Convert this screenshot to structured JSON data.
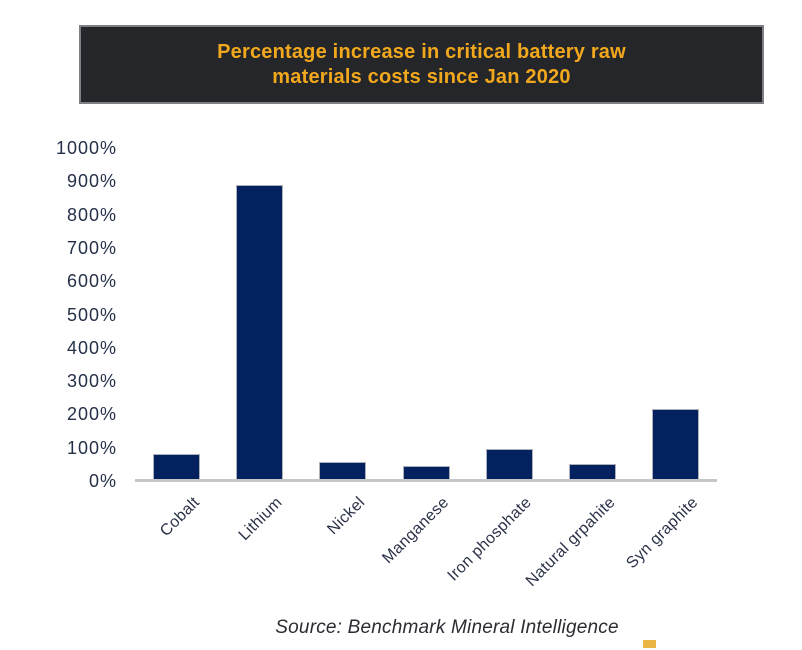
{
  "header": {
    "title_lines": [
      "Percentage increase in critical battery raw",
      "materials costs since Jan 2020"
    ]
  },
  "chart_data": {
    "type": "bar",
    "title": "Percentage increase in critical battery raw materials costs since Jan 2020",
    "categories": [
      "Cobalt",
      "Lithium",
      "Nickel",
      "Manganese",
      "Iron phosphate",
      "Natural grpahite",
      "Syn graphite"
    ],
    "values": [
      80,
      890,
      58,
      45,
      95,
      50,
      215
    ],
    "unit": "%",
    "xlabel": "",
    "ylabel": "",
    "ylim": [
      0,
      1000
    ],
    "ytick_step": 100,
    "ytick_labels": [
      "0%",
      "100%",
      "200%",
      "300%",
      "400%",
      "500%",
      "600%",
      "700%",
      "800%",
      "900%",
      "1000%"
    ],
    "grid": false,
    "legend": "none",
    "source": "Source: Benchmark Mineral Intelligence"
  },
  "colors": {
    "banner_background": "#242629",
    "banner_title_text": "#F2A81D",
    "bar_fill": "#03215f",
    "axis_line": "#c6c7c9",
    "axis_text": "#243048",
    "source_text": "#2b2b33",
    "accent_gold": "#EBB546"
  }
}
